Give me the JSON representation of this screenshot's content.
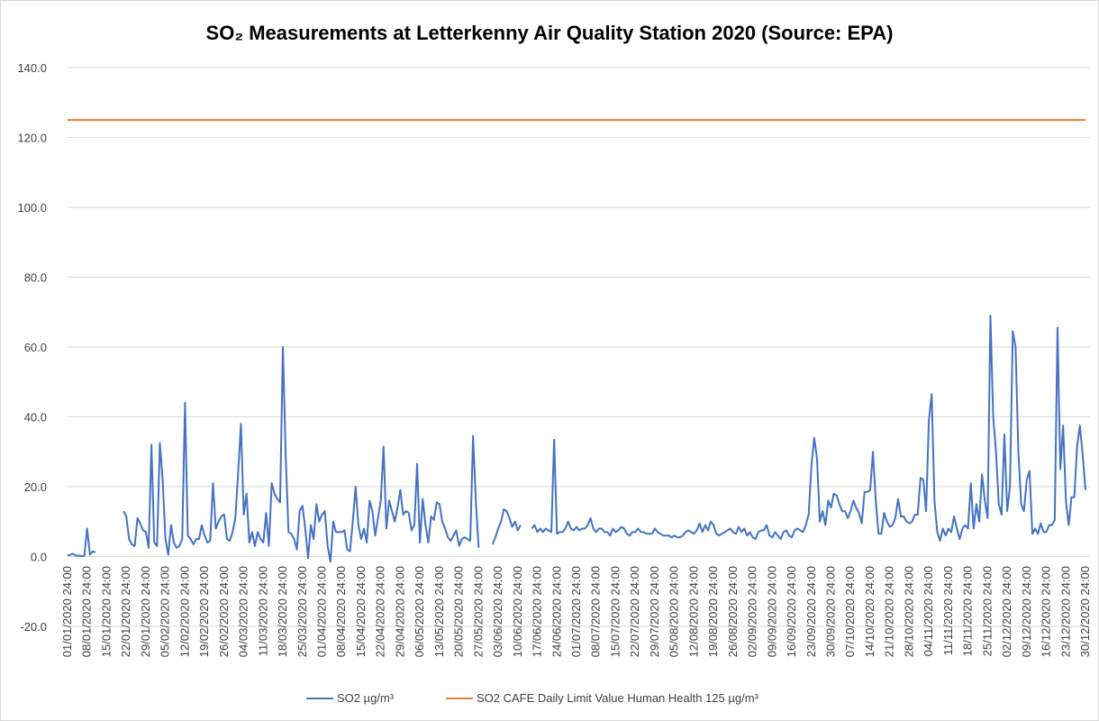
{
  "chart_data": {
    "type": "line",
    "title": "SO₂ Measurements at Letterkenny Air Quality Station 2020 (Source: EPA)",
    "ylim": [
      -20,
      140
    ],
    "yticks": [
      {
        "value": -20,
        "label": "-20.0"
      },
      {
        "value": 0,
        "label": "0.0"
      },
      {
        "value": 20,
        "label": "20.0"
      },
      {
        "value": 40,
        "label": "40.0"
      },
      {
        "value": 60,
        "label": "60.0"
      },
      {
        "value": 80,
        "label": "80.0"
      },
      {
        "value": 100,
        "label": "100.0"
      },
      {
        "value": 120,
        "label": "120.0"
      },
      {
        "value": 140,
        "label": "140.0"
      }
    ],
    "grid": true,
    "legend": "bottom",
    "categories": [
      "01/01/2020 24:00",
      null,
      null,
      null,
      null,
      null,
      null,
      "08/01/2020 24:00",
      null,
      null,
      null,
      null,
      null,
      null,
      "15/01/2020 24:00",
      null,
      null,
      null,
      null,
      null,
      null,
      "22/01/2020 24:00",
      null,
      null,
      null,
      null,
      null,
      null,
      "29/01/2020 24:00",
      null,
      null,
      null,
      null,
      null,
      null,
      "05/02/2020 24:00",
      null,
      null,
      null,
      null,
      null,
      null,
      "12/02/2020 24:00",
      null,
      null,
      null,
      null,
      null,
      null,
      "19/02/2020 24:00",
      null,
      null,
      null,
      null,
      null,
      null,
      "26/02/2020 24:00",
      null,
      null,
      null,
      null,
      null,
      null,
      "04/03/2020 24:00",
      null,
      null,
      null,
      null,
      null,
      null,
      "11/03/2020 24:00",
      null,
      null,
      null,
      null,
      null,
      null,
      "18/03/2020 24:00",
      null,
      null,
      null,
      null,
      null,
      null,
      "25/03/2020 24:00",
      null,
      null,
      null,
      null,
      null,
      null,
      "01/04/2020 24:00",
      null,
      null,
      null,
      null,
      null,
      null,
      "08/04/2020 24:00",
      null,
      null,
      null,
      null,
      null,
      null,
      "15/04/2020 24:00",
      null,
      null,
      null,
      null,
      null,
      null,
      "22/04/2020 24:00",
      null,
      null,
      null,
      null,
      null,
      null,
      "29/04/2020 24:00",
      null,
      null,
      null,
      null,
      null,
      null,
      "06/05/2020 24:00",
      null,
      null,
      null,
      null,
      null,
      null,
      "13/05/2020 24:00",
      null,
      null,
      null,
      null,
      null,
      null,
      "20/05/2020 24:00",
      null,
      null,
      null,
      null,
      null,
      null,
      "27/05/2020 24:00",
      null,
      null,
      null,
      null,
      null,
      null,
      "03/06/2020 24:00",
      null,
      null,
      null,
      null,
      null,
      null,
      "10/06/2020 24:00",
      null,
      null,
      null,
      null,
      null,
      null,
      "17/06/2020 24:00",
      null,
      null,
      null,
      null,
      null,
      null,
      "24/06/2020 24:00",
      null,
      null,
      null,
      null,
      null,
      null,
      "01/07/2020 24:00",
      null,
      null,
      null,
      null,
      null,
      null,
      "08/07/2020 24:00",
      null,
      null,
      null,
      null,
      null,
      null,
      "15/07/2020 24:00",
      null,
      null,
      null,
      null,
      null,
      null,
      "22/07/2020 24:00",
      null,
      null,
      null,
      null,
      null,
      null,
      "29/07/2020 24:00",
      null,
      null,
      null,
      null,
      null,
      null,
      "05/08/2020 24:00",
      null,
      null,
      null,
      null,
      null,
      null,
      "12/08/2020 24:00",
      null,
      null,
      null,
      null,
      null,
      null,
      "19/08/2020 24:00",
      null,
      null,
      null,
      null,
      null,
      null,
      "26/08/2020 24:00",
      null,
      null,
      null,
      null,
      null,
      null,
      "02/09/2020 24:00",
      null,
      null,
      null,
      null,
      null,
      null,
      "09/09/2020 24:00",
      null,
      null,
      null,
      null,
      null,
      null,
      "16/09/2020 24:00",
      null,
      null,
      null,
      null,
      null,
      null,
      "23/09/2020 24:00",
      null,
      null,
      null,
      null,
      null,
      null,
      "30/09/2020 24:00",
      null,
      null,
      null,
      null,
      null,
      null,
      "07/10/2020 24:00",
      null,
      null,
      null,
      null,
      null,
      null,
      "14/10/2020 24:00",
      null,
      null,
      null,
      null,
      null,
      null,
      "21/10/2020 24:00",
      null,
      null,
      null,
      null,
      null,
      null,
      "28/10/2020 24:00",
      null,
      null,
      null,
      null,
      null,
      null,
      "04/11/2020 24:00",
      null,
      null,
      null,
      null,
      null,
      null,
      "11/11/2020 24:00",
      null,
      null,
      null,
      null,
      null,
      null,
      "18/11/2020 24:00",
      null,
      null,
      null,
      null,
      null,
      null,
      "25/11/2020 24:00",
      null,
      null,
      null,
      null,
      null,
      null,
      "02/12/2020 24:00",
      null,
      null,
      null,
      null,
      null,
      null,
      "09/12/2020 24:00",
      null,
      null,
      null,
      null,
      null,
      null,
      "16/12/2020 24:00",
      null,
      null,
      null,
      null,
      null,
      null,
      "23/12/2020 24:00",
      null,
      null,
      null,
      null,
      null,
      null,
      "30/12/2020 24:00"
    ],
    "series": [
      {
        "name": "SO2 µg/m³",
        "color": "#4472c4",
        "values": [
          0.3,
          0.5,
          0.8,
          0.2,
          0.3,
          0.1,
          0.2,
          8,
          0.5,
          1.5,
          1.2,
          null,
          null,
          null,
          null,
          null,
          null,
          null,
          null,
          null,
          13,
          11.5,
          5,
          3.5,
          3,
          11,
          9.5,
          7.5,
          7,
          2.5,
          32,
          4,
          3,
          32.5,
          22,
          5,
          0.5,
          9,
          4,
          2.5,
          3,
          5,
          44,
          6,
          5,
          3.5,
          5,
          5,
          9,
          6,
          4,
          4.5,
          21,
          8,
          10,
          11.5,
          12,
          5,
          4.5,
          7,
          11,
          24,
          38,
          12,
          18,
          4,
          7,
          3,
          7,
          5,
          4,
          12.5,
          3,
          21,
          18,
          16.5,
          15.5,
          60,
          29,
          7,
          6.5,
          5,
          2,
          13,
          14.5,
          8,
          -0.5,
          9,
          5,
          15,
          10,
          12,
          13,
          3,
          -1.5,
          10,
          7,
          7,
          7,
          7.5,
          2,
          1.5,
          10,
          20,
          9,
          5,
          8,
          4,
          16,
          13,
          6,
          11,
          16,
          31.5,
          8,
          16,
          13,
          10,
          14,
          19,
          12,
          13,
          12.5,
          7.5,
          9,
          26.5,
          4,
          16.5,
          9,
          4,
          11.5,
          10.5,
          15.5,
          15,
          10,
          8,
          5.5,
          4.5,
          6,
          7.5,
          3,
          5,
          5.5,
          5,
          4.5,
          34.5,
          16,
          2.5,
          null,
          null,
          null,
          null,
          3.5,
          5.5,
          8,
          10,
          13.5,
          13,
          11,
          8.5,
          10,
          7.5,
          9,
          null,
          null,
          null,
          8,
          9,
          7,
          8,
          7,
          8,
          7.5,
          7,
          33.5,
          6.5,
          7,
          7,
          8,
          10,
          8,
          7.5,
          8.5,
          7.5,
          8,
          8,
          9,
          11,
          8,
          7,
          8,
          8,
          7,
          7,
          6,
          8,
          7,
          7.5,
          8.5,
          8,
          6.5,
          6,
          7,
          7,
          8,
          7,
          7,
          6.5,
          6.5,
          6.5,
          8,
          7,
          6.5,
          6,
          6,
          6,
          5.5,
          6,
          5.5,
          5.5,
          6,
          7,
          7.5,
          7,
          6.5,
          7.5,
          9.5,
          7,
          9,
          7.5,
          10,
          9,
          6.5,
          6,
          6.5,
          7,
          7.5,
          8,
          7,
          6.5,
          8.5,
          7,
          8,
          6,
          7,
          5.5,
          5,
          7,
          7.5,
          7.5,
          9,
          6,
          5.5,
          7,
          6,
          5,
          7,
          7.5,
          6,
          5.5,
          7.5,
          8,
          7.5,
          7,
          9,
          12,
          26,
          34,
          28,
          10,
          13,
          9,
          16,
          14,
          18,
          17.5,
          15,
          13,
          13,
          11,
          13,
          16,
          14,
          12.5,
          9.5,
          18.5,
          18.5,
          19,
          30,
          16,
          6.5,
          6.5,
          12.5,
          10,
          8.5,
          9,
          11,
          16.5,
          11.5,
          11.5,
          10,
          9.5,
          10,
          12,
          12,
          22.5,
          22,
          13,
          39,
          46.5,
          16,
          7,
          4.5,
          8,
          6,
          8,
          7,
          11.5,
          8,
          5,
          8,
          9,
          8,
          21,
          8,
          15,
          10,
          23.5,
          16,
          11,
          69,
          40,
          30,
          15,
          12,
          35,
          13,
          20,
          64.5,
          60,
          30,
          15,
          13,
          22,
          24.5,
          6.5,
          8,
          6.5,
          9.5,
          7,
          7,
          9,
          9,
          10.5,
          65.5,
          25,
          37.5,
          16,
          9,
          17,
          17,
          31.5,
          37.5,
          29,
          19
        ]
      },
      {
        "name": "SO2 CAFE Daily Limit Value Human Health  125 µg/m³",
        "color": "#ed7d31",
        "values": [
          125,
          125,
          125,
          125,
          125,
          125,
          125,
          125,
          125,
          125,
          125,
          125,
          125,
          125,
          125,
          125,
          125,
          125,
          125,
          125,
          125,
          125,
          125,
          125,
          125,
          125,
          125,
          125,
          125,
          125,
          125,
          125,
          125,
          125,
          125,
          125,
          125,
          125,
          125,
          125,
          125,
          125,
          125,
          125,
          125,
          125,
          125,
          125,
          125,
          125,
          125,
          125,
          125,
          125,
          125,
          125,
          125,
          125,
          125,
          125,
          125,
          125,
          125,
          125,
          125,
          125,
          125,
          125,
          125,
          125,
          125,
          125,
          125,
          125,
          125,
          125,
          125,
          125,
          125,
          125,
          125,
          125,
          125,
          125,
          125,
          125,
          125,
          125,
          125,
          125,
          125,
          125,
          125,
          125,
          125,
          125,
          125,
          125,
          125,
          125,
          125,
          125,
          125,
          125,
          125,
          125,
          125,
          125,
          125,
          125,
          125,
          125,
          125,
          125,
          125,
          125,
          125,
          125,
          125,
          125,
          125,
          125,
          125,
          125,
          125,
          125,
          125,
          125,
          125,
          125,
          125,
          125,
          125,
          125,
          125,
          125,
          125,
          125,
          125,
          125,
          125,
          125,
          125,
          125,
          125,
          125,
          125,
          125,
          125,
          125,
          125,
          125,
          125,
          125,
          125,
          125,
          125,
          125,
          125,
          125,
          125,
          125,
          125,
          125,
          125,
          125,
          125,
          125,
          125,
          125,
          125,
          125,
          125,
          125,
          125,
          125,
          125,
          125,
          125,
          125,
          125,
          125,
          125,
          125,
          125,
          125,
          125,
          125,
          125,
          125,
          125,
          125,
          125,
          125,
          125,
          125,
          125,
          125,
          125,
          125,
          125,
          125,
          125,
          125,
          125,
          125,
          125,
          125,
          125,
          125,
          125,
          125,
          125,
          125,
          125,
          125,
          125,
          125,
          125,
          125,
          125,
          125,
          125,
          125,
          125,
          125,
          125,
          125,
          125,
          125,
          125,
          125,
          125,
          125,
          125,
          125,
          125,
          125,
          125,
          125,
          125,
          125,
          125,
          125,
          125,
          125,
          125,
          125,
          125,
          125,
          125,
          125,
          125,
          125,
          125,
          125,
          125,
          125,
          125,
          125,
          125,
          125,
          125,
          125,
          125,
          125,
          125,
          125,
          125,
          125,
          125,
          125,
          125,
          125,
          125,
          125,
          125,
          125,
          125,
          125,
          125,
          125,
          125,
          125,
          125,
          125,
          125,
          125,
          125,
          125,
          125,
          125,
          125,
          125,
          125,
          125,
          125,
          125,
          125,
          125,
          125,
          125,
          125,
          125,
          125,
          125,
          125,
          125,
          125,
          125,
          125,
          125,
          125,
          125,
          125,
          125,
          125,
          125,
          125,
          125,
          125,
          125,
          125,
          125,
          125,
          125,
          125,
          125,
          125,
          125,
          125,
          125,
          125,
          125,
          125,
          125,
          125,
          125,
          125,
          125,
          125,
          125,
          125,
          125,
          125,
          125,
          125,
          125,
          125,
          125,
          125,
          125,
          125,
          125,
          125,
          125,
          125,
          125,
          125,
          125,
          125,
          125,
          125,
          125,
          125
        ]
      }
    ]
  }
}
